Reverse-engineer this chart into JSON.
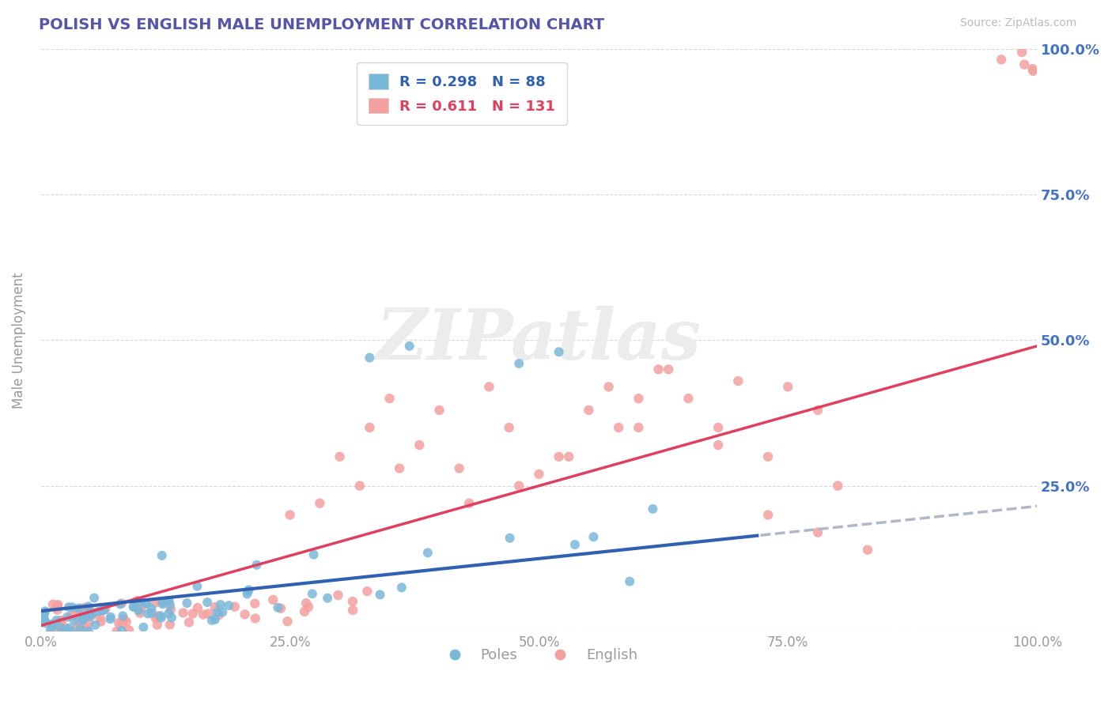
{
  "title": "POLISH VS ENGLISH MALE UNEMPLOYMENT CORRELATION CHART",
  "source": "Source: ZipAtlas.com",
  "ylabel": "Male Unemployment",
  "watermark": "ZIPatlas",
  "poles_r": "0.298",
  "poles_n": "88",
  "english_r": "0.611",
  "english_n": "131",
  "poles_color": "#7ab8d9",
  "english_color": "#f4a0a0",
  "poles_line_color": "#3060b0",
  "english_line_color": "#e04060",
  "dashed_color": "#b0b8c8",
  "background_color": "#ffffff",
  "grid_color": "#d8d8d8",
  "title_color": "#5555aa",
  "axis_label_color": "#999999",
  "right_tick_color": "#4472c4",
  "source_color": "#bbbbbb",
  "xlim": [
    0.0,
    1.0
  ],
  "ylim": [
    0.0,
    1.0
  ],
  "xticks": [
    0.0,
    0.25,
    0.5,
    0.75,
    1.0
  ],
  "yticks": [
    0.0,
    0.25,
    0.5,
    0.75,
    1.0
  ],
  "xticklabels": [
    "0.0%",
    "25.0%",
    "50.0%",
    "75.0%",
    "100.0%"
  ],
  "yticklabels_right": [
    "",
    "25.0%",
    "50.0%",
    "75.0%",
    "100.0%"
  ]
}
